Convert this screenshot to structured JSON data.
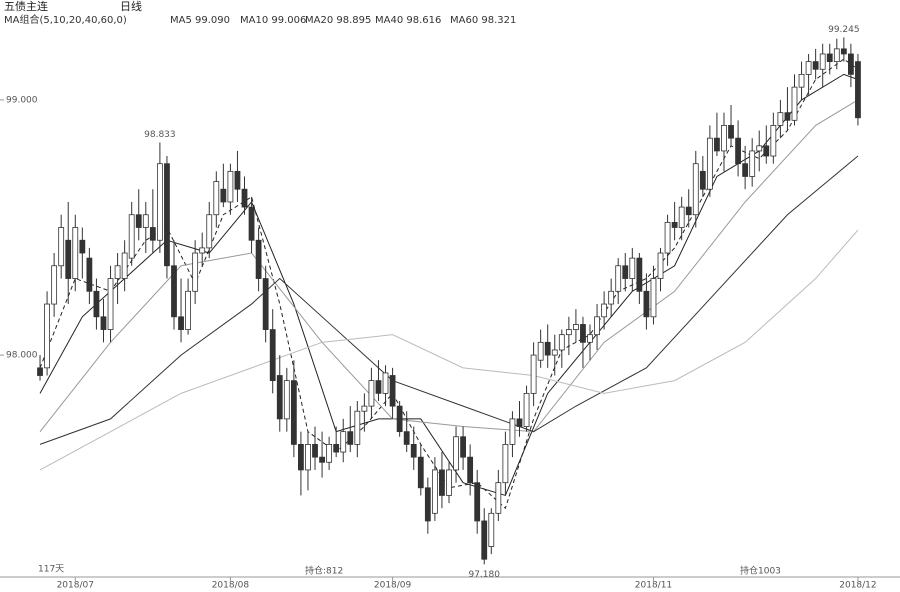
{
  "chart_data": {
    "type": "candlestick",
    "title": "五债主连",
    "period": "日线",
    "ma_group": "MA组合(5,10,20,40,60,0)",
    "ylim": [
      97.15,
      99.27
    ],
    "yticks": [
      {
        "value": 98,
        "label": "98.000"
      },
      {
        "value": 99,
        "label": "99.000"
      }
    ],
    "xlim": [
      -0.5,
      117
    ],
    "xticks": [
      {
        "value": 5,
        "label": "2018/07"
      },
      {
        "value": 27,
        "label": "2018/08"
      },
      {
        "value": 50,
        "label": "2018/09"
      },
      {
        "value": 87,
        "label": "2018/11"
      },
      {
        "value": 116,
        "label": "2018/12"
      }
    ],
    "open": [
      97.95,
      97.95,
      98.2,
      98.35,
      98.45,
      98.3,
      98.45,
      98.38,
      98.25,
      98.15,
      98.1,
      98.3,
      98.3,
      98.38,
      98.55,
      98.5,
      98.5,
      98.45,
      98.75,
      98.35,
      98.15,
      98.1,
      98.25,
      98.4,
      98.42,
      98.55,
      98.65,
      98.6,
      98.72,
      98.65,
      98.58,
      98.45,
      98.3,
      98.1,
      97.92,
      97.75,
      97.9,
      97.65,
      97.55,
      97.65,
      97.6,
      97.58,
      97.65,
      97.62,
      97.7,
      97.65,
      97.78,
      97.8,
      97.9,
      97.85,
      97.92,
      97.8,
      97.7,
      97.65,
      97.6,
      97.48,
      97.38,
      97.55,
      97.45,
      97.55,
      97.68,
      97.6,
      97.5,
      97.35,
      97.25,
      97.38,
      97.5,
      97.65,
      97.75,
      97.72,
      97.85,
      97.98,
      98.05,
      98,
      98.02,
      98.08,
      98.1,
      98.12,
      98.05,
      98.08,
      98.15,
      98.2,
      98.25,
      98.35,
      98.3,
      98.38,
      98.25,
      98.15,
      98.3,
      98.4,
      98.52,
      98.5,
      98.58,
      98.55,
      98.72,
      98.65,
      98.85,
      98.8,
      98.9,
      98.85,
      98.75,
      98.7,
      98.8,
      98.82,
      98.78,
      98.9,
      98.95,
      98.92,
      99.05,
      99.1,
      99.15,
      99.12,
      99.18,
      99.15,
      99.2,
      99.18,
      99.15
    ],
    "high": [
      98,
      98.25,
      98.4,
      98.55,
      98.6,
      98.55,
      98.5,
      98.42,
      98.3,
      98.22,
      98.35,
      98.4,
      98.45,
      98.6,
      98.65,
      98.6,
      98.65,
      98.833,
      98.78,
      98.45,
      98.3,
      98.3,
      98.45,
      98.48,
      98.6,
      98.72,
      98.75,
      98.75,
      98.8,
      98.7,
      98.62,
      98.5,
      98.35,
      98.18,
      98,
      97.95,
      97.98,
      97.7,
      97.7,
      97.72,
      97.7,
      97.68,
      97.72,
      97.75,
      97.8,
      97.82,
      97.85,
      97.95,
      97.98,
      97.96,
      97.95,
      97.82,
      97.78,
      97.72,
      97.65,
      97.52,
      97.6,
      97.62,
      97.58,
      97.72,
      97.72,
      97.65,
      97.55,
      97.4,
      97.4,
      97.55,
      97.7,
      97.78,
      97.82,
      97.88,
      98.05,
      98.1,
      98.12,
      98.08,
      98.1,
      98.15,
      98.18,
      98.15,
      98.12,
      98.2,
      98.25,
      98.3,
      98.38,
      98.4,
      98.42,
      98.4,
      98.32,
      98.35,
      98.42,
      98.55,
      98.6,
      98.62,
      98.65,
      98.8,
      98.78,
      98.9,
      98.95,
      98.95,
      98.98,
      98.92,
      98.82,
      98.85,
      98.88,
      98.9,
      98.95,
      99,
      99.05,
      99.1,
      99.15,
      99.18,
      99.2,
      99.22,
      99.22,
      99.24,
      99.245,
      99.22,
      99.18
    ],
    "low": [
      97.9,
      97.92,
      98.15,
      98.3,
      98.2,
      98.25,
      98.3,
      98.2,
      98.1,
      98.05,
      98.05,
      98.2,
      98.25,
      98.35,
      98.45,
      98.4,
      98.4,
      98.4,
      98.3,
      98.1,
      98.05,
      98.08,
      98.2,
      98.35,
      98.38,
      98.5,
      98.58,
      98.55,
      98.6,
      98.55,
      98.4,
      98.25,
      98.05,
      97.85,
      97.7,
      97.7,
      97.6,
      97.45,
      97.47,
      97.55,
      97.52,
      97.55,
      97.6,
      97.58,
      97.62,
      97.6,
      97.7,
      97.75,
      97.82,
      97.8,
      97.75,
      97.68,
      97.62,
      97.55,
      97.45,
      97.3,
      97.35,
      97.4,
      97.42,
      97.5,
      97.55,
      97.45,
      97.3,
      97.18,
      97.22,
      97.35,
      97.45,
      97.6,
      97.68,
      97.7,
      97.8,
      97.95,
      97.95,
      97.92,
      97.95,
      98,
      98.05,
      97.95,
      97.98,
      98.02,
      98.1,
      98.15,
      98.2,
      98.25,
      98.25,
      98.2,
      98.1,
      98.12,
      98.25,
      98.35,
      98.45,
      98.45,
      98.5,
      98.5,
      98.62,
      98.62,
      98.78,
      98.72,
      98.82,
      98.7,
      98.65,
      98.66,
      98.72,
      98.75,
      98.75,
      98.85,
      98.88,
      98.9,
      99,
      99.02,
      99.08,
      99.05,
      99.1,
      99.12,
      99.15,
      99.05,
      98.9
    ],
    "close": [
      97.92,
      98.2,
      98.35,
      98.5,
      98.3,
      98.5,
      98.4,
      98.25,
      98.15,
      98.1,
      98.3,
      98.35,
      98.4,
      98.55,
      98.5,
      98.55,
      98.45,
      98.75,
      98.35,
      98.15,
      98.1,
      98.25,
      98.4,
      98.42,
      98.55,
      98.68,
      98.6,
      98.72,
      98.65,
      98.58,
      98.45,
      98.3,
      98.1,
      97.9,
      97.75,
      97.9,
      97.65,
      97.55,
      97.65,
      97.6,
      97.58,
      97.65,
      97.62,
      97.7,
      97.65,
      97.78,
      97.8,
      97.9,
      97.85,
      97.93,
      97.8,
      97.7,
      97.65,
      97.6,
      97.48,
      97.35,
      97.55,
      97.45,
      97.55,
      97.68,
      97.6,
      97.5,
      97.35,
      97.2,
      97.38,
      97.5,
      97.65,
      97.75,
      97.72,
      97.85,
      98,
      98.05,
      98,
      98.02,
      98.08,
      98.1,
      98.12,
      98.05,
      98.08,
      98.15,
      98.2,
      98.25,
      98.35,
      98.3,
      98.38,
      98.25,
      98.15,
      98.3,
      98.4,
      98.52,
      98.5,
      98.58,
      98.55,
      98.75,
      98.65,
      98.85,
      98.8,
      98.9,
      98.85,
      98.75,
      98.7,
      98.8,
      98.82,
      98.78,
      98.9,
      98.95,
      98.92,
      99.05,
      99.1,
      99.15,
      99.12,
      99.18,
      99.15,
      99.2,
      99.18,
      99.1,
      98.93
    ],
    "up_color": "#ffffff",
    "down_color": "#333333",
    "edge_color": "#333333",
    "series": [
      {
        "name": "MA5 99.090",
        "color": "#222222",
        "dash": true,
        "x": [
          0,
          5,
          10,
          15,
          18,
          22,
          26,
          30,
          34,
          38,
          42,
          46,
          50,
          54,
          58,
          62,
          66,
          70,
          74,
          78,
          82,
          86,
          90,
          94,
          98,
          102,
          106,
          110,
          114,
          116
        ],
        "values": [
          97.95,
          98.3,
          98.25,
          98.45,
          98.5,
          98.28,
          98.55,
          98.62,
          98.2,
          97.7,
          97.62,
          97.72,
          97.85,
          97.65,
          97.48,
          97.5,
          97.4,
          97.75,
          98.02,
          98.08,
          98.25,
          98.3,
          98.42,
          98.62,
          98.82,
          98.77,
          98.88,
          99.08,
          99.16,
          99.12
        ]
      },
      {
        "name": "MA10 99.006",
        "color": "#222222",
        "dash": false,
        "x": [
          0,
          6,
          12,
          18,
          24,
          30,
          36,
          42,
          48,
          54,
          60,
          66,
          72,
          78,
          84,
          90,
          96,
          102,
          108,
          114,
          116
        ],
        "values": [
          97.85,
          98.15,
          98.3,
          98.45,
          98.4,
          98.6,
          98.2,
          97.7,
          97.75,
          97.75,
          97.5,
          97.45,
          97.85,
          98.05,
          98.25,
          98.35,
          98.7,
          98.8,
          99,
          99.1,
          99.08
        ]
      },
      {
        "name": "MA20 98.895",
        "color": "#999999",
        "dash": false,
        "x": [
          0,
          10,
          20,
          30,
          40,
          50,
          60,
          70,
          80,
          90,
          100,
          110,
          116
        ],
        "values": [
          97.7,
          98.05,
          98.35,
          98.4,
          98.05,
          97.75,
          97.72,
          97.7,
          98.05,
          98.25,
          98.6,
          98.9,
          99
        ]
      },
      {
        "name": "MA40 98.616",
        "color": "#333333",
        "dash": false,
        "x": [
          0,
          10,
          20,
          30,
          34,
          40,
          50,
          60,
          70,
          76,
          86,
          96,
          106,
          116
        ],
        "values": [
          97.65,
          97.75,
          98,
          98.2,
          98.3,
          98.15,
          97.9,
          97.8,
          97.7,
          97.8,
          97.95,
          98.25,
          98.55,
          98.78
        ]
      },
      {
        "name": "MA60 98.321",
        "color": "#bbbbbb",
        "dash": false,
        "x": [
          0,
          10,
          20,
          30,
          40,
          50,
          60,
          70,
          80,
          90,
          100,
          110,
          116
        ],
        "values": [
          97.55,
          97.7,
          97.85,
          97.95,
          98.05,
          98.08,
          97.95,
          97.92,
          97.85,
          97.9,
          98.05,
          98.3,
          98.49
        ]
      }
    ],
    "annotations": [
      {
        "text": "98.833",
        "x": 17,
        "y": 98.833,
        "pos": "above"
      },
      {
        "text": "99.245",
        "x": 114,
        "y": 99.245,
        "pos": "above"
      },
      {
        "text": "97.180",
        "x": 63,
        "y": 97.18,
        "pos": "below"
      }
    ],
    "footer": [
      "117天",
      "持仓:812",
      "持仓1003"
    ]
  }
}
